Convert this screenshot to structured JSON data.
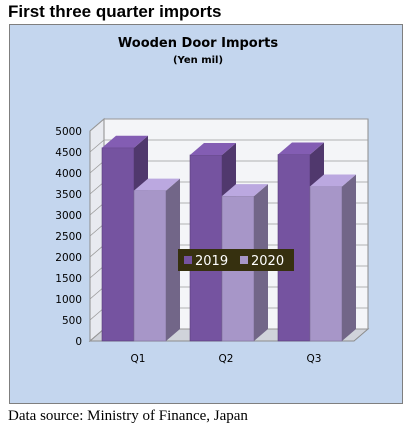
{
  "header": {
    "text": "First three quarter imports"
  },
  "footer": {
    "text": "Data source: Ministry of Finance, Japan"
  },
  "colors": {
    "background": "#c4d6ee",
    "series_2019": "#7553a0",
    "series_2020": "#a796c8",
    "legend_bg": "#36300f"
  },
  "chart_data": {
    "type": "bar",
    "title": "Wooden Door Imports",
    "subtitle": "(Yen mil)",
    "categories": [
      "Q1",
      "Q2",
      "Q3"
    ],
    "series": [
      {
        "name": "2019",
        "values": [
          4600,
          4430,
          4440
        ]
      },
      {
        "name": "2020",
        "values": [
          3580,
          3450,
          3680
        ]
      }
    ],
    "ylim": [
      0,
      5000
    ],
    "yticks": [
      "0",
      "500",
      "1000",
      "1500",
      "2000",
      "2500",
      "3000",
      "3500",
      "4000",
      "4500",
      "5000"
    ],
    "grid": true,
    "legend": "center"
  }
}
